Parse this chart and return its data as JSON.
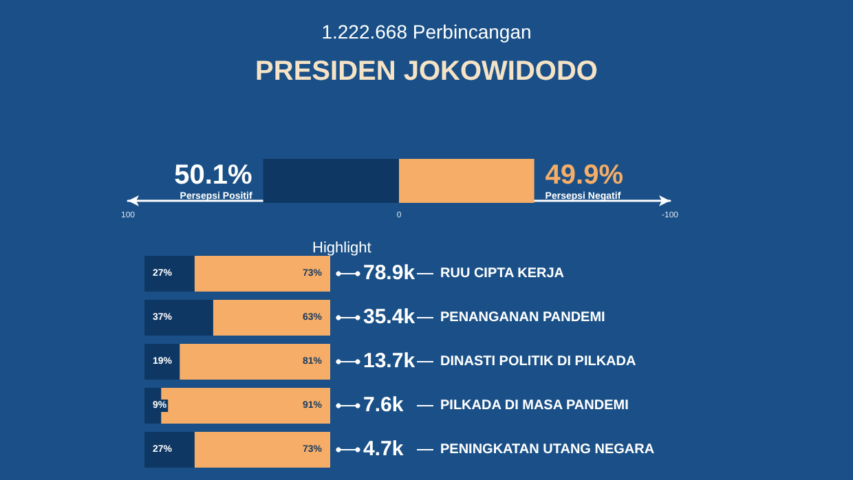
{
  "chart_data": [
    {
      "type": "bar",
      "title": "PRESIDEN JOKOWIDODO",
      "subtitle": "1.222.668 Perbincangan",
      "orientation": "horizontal",
      "categories": [
        null
      ],
      "series": [
        {
          "name": "Persepsi Positif",
          "color": "#0e3764",
          "values": [
            50.1
          ],
          "base": [
            0
          ],
          "value_labels": [
            "50.1%"
          ]
        },
        {
          "name": "Persepsi Negatif",
          "color": "#f5ad67",
          "values": [
            49.9
          ],
          "base": [
            -49.9
          ],
          "value_labels": [
            "49.9%"
          ]
        }
      ],
      "xlim": [
        100,
        -100
      ],
      "xticks": [
        100,
        0,
        -100
      ],
      "grid": false,
      "legend": false
    },
    {
      "type": "bar",
      "title": "Highlight",
      "orientation": "horizontal",
      "stacked": true,
      "categories": [
        "RUU CIPTA KERJA",
        "PENANGANAN PANDEMI",
        "DINASTI POLITIK DI PILKADA",
        "PILKADA DI MASA PANDEMI",
        "PENINGKATAN UTANG NEGARA"
      ],
      "series": [
        {
          "color": "#0e3764",
          "values": [
            27,
            37,
            19,
            9,
            27
          ],
          "value_labels": [
            "27%",
            "37%",
            "19%",
            "9%",
            "27%"
          ]
        },
        {
          "color": "#f5ad67",
          "values": [
            73,
            63,
            81,
            91,
            73
          ],
          "value_labels": [
            "73%",
            "63%",
            "81%",
            "91%",
            "73%"
          ]
        }
      ],
      "annotations": [
        "78.9k",
        "35.4k",
        "13.7k",
        "7.6k",
        "4.7k"
      ],
      "xlim": [
        0,
        100
      ],
      "tick_labels": "y",
      "grid": false,
      "legend": false
    }
  ]
}
